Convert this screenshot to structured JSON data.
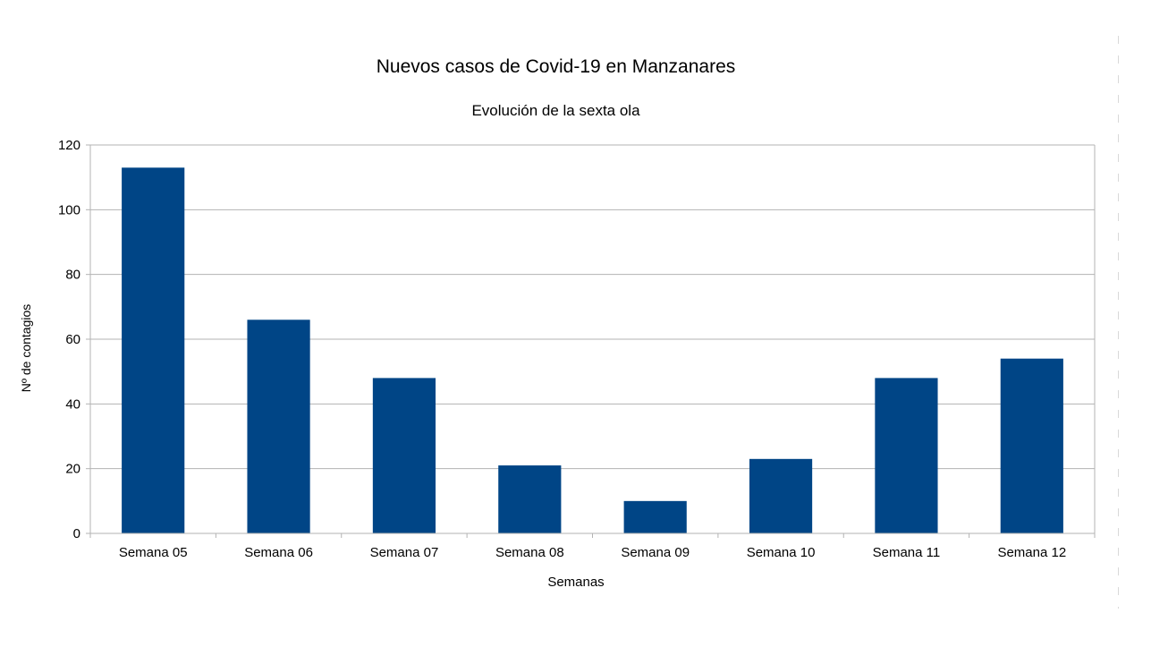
{
  "chart_data": {
    "type": "bar",
    "title": "Nuevos casos de Covid-19 en Manzanares",
    "subtitle": "Evolución de la sexta ola",
    "xlabel": "Semanas",
    "ylabel": "Nº de contagios",
    "categories": [
      "Semana 05",
      "Semana 06",
      "Semana 07",
      "Semana 08",
      "Semana 09",
      "Semana 10",
      "Semana 11",
      "Semana 12"
    ],
    "values": [
      113,
      66,
      48,
      21,
      10,
      23,
      48,
      54
    ],
    "ylim": [
      0,
      120
    ],
    "yticks": [
      0,
      20,
      40,
      60,
      80,
      100,
      120
    ],
    "grid": true,
    "legend": "none",
    "colors": {
      "bar": "#004586",
      "grid": "#b3b3b3",
      "axis": "#b3b3b3",
      "text": "#000000"
    }
  }
}
